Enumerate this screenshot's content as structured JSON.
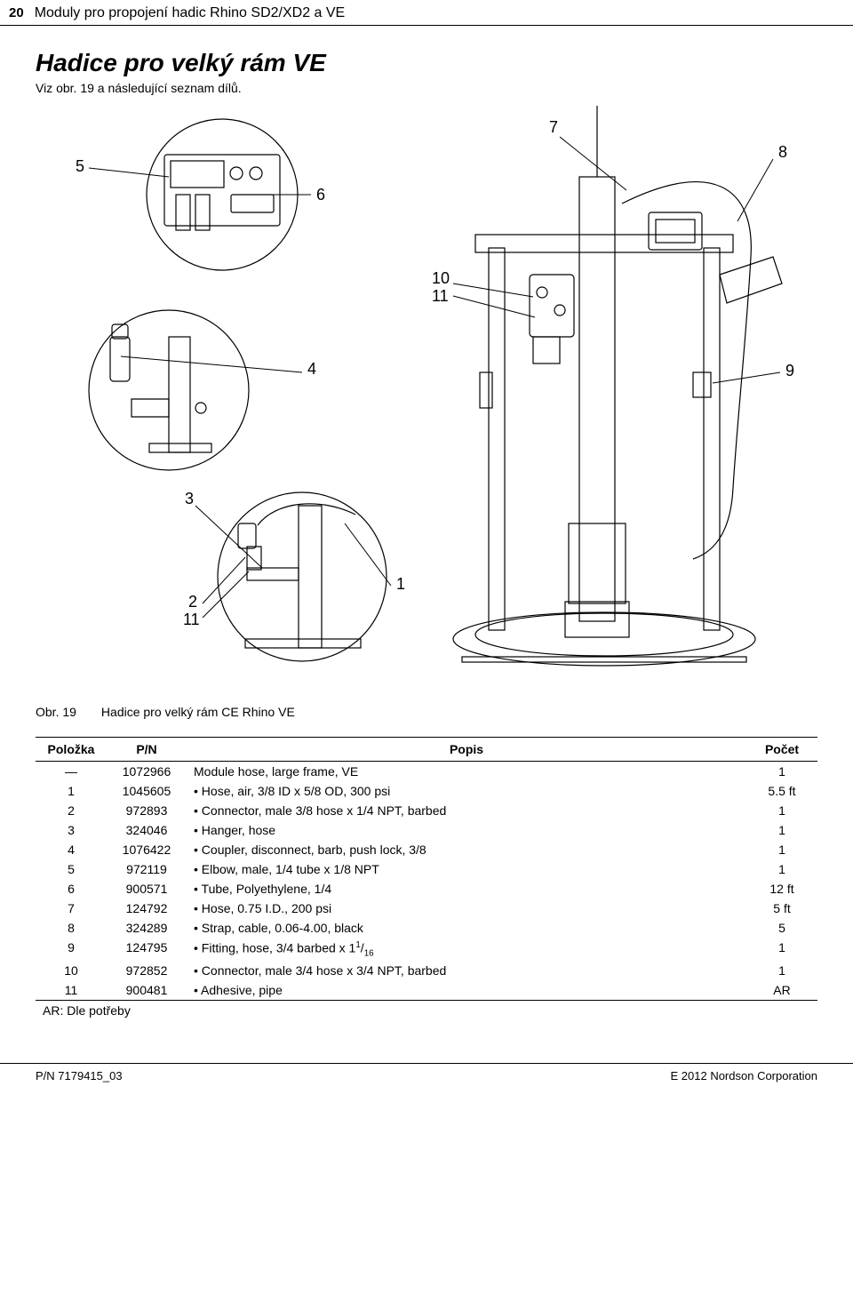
{
  "header": {
    "page_number": "20",
    "doc_title": "Moduly pro propojení hadic Rhino SD2/XD2 a VE"
  },
  "titles": {
    "main": "Hadice pro velký rám VE",
    "sub": "Viz obr. 19 a následující seznam dílů."
  },
  "figure": {
    "callouts": {
      "c5": "5",
      "c6": "6",
      "c7": "7",
      "c8": "8",
      "c10": "10",
      "c11a": "11",
      "c4": "4",
      "c9": "9",
      "c3": "3",
      "c2": "2",
      "c11b": "11",
      "c1": "1"
    },
    "caption_label": "Obr. 19",
    "caption_text": "Hadice pro velký rám CE Rhino VE"
  },
  "table": {
    "headers": {
      "item": "Položka",
      "pn": "P/N",
      "desc": "Popis",
      "qty": "Počet"
    },
    "rows": [
      {
        "item": "—",
        "pn": "1072966",
        "desc": "Module hose, large frame, VE",
        "qty": "1"
      },
      {
        "item": "1",
        "pn": "1045605",
        "desc": "•  Hose, air, 3/8 ID x 5/8 OD, 300 psi",
        "qty": "5.5 ft"
      },
      {
        "item": "2",
        "pn": "972893",
        "desc": "•  Connector, male 3/8 hose x 1/4 NPT, barbed",
        "qty": "1"
      },
      {
        "item": "3",
        "pn": "324046",
        "desc": "•  Hanger, hose",
        "qty": "1"
      },
      {
        "item": "4",
        "pn": "1076422",
        "desc": "•  Coupler, disconnect, barb, push lock, 3/8",
        "qty": "1"
      },
      {
        "item": "5",
        "pn": "972119",
        "desc": "•  Elbow, male, 1/4 tube x 1/8 NPT",
        "qty": "1"
      },
      {
        "item": "6",
        "pn": "900571",
        "desc": "•  Tube, Polyethylene, 1/4",
        "qty": "12 ft"
      },
      {
        "item": "7",
        "pn": "124792",
        "desc": "•  Hose, 0.75 I.D., 200 psi",
        "qty": "5 ft"
      },
      {
        "item": "8",
        "pn": "324289",
        "desc": "•  Strap, cable, 0.06-4.00, black",
        "qty": "5"
      },
      {
        "item": "9",
        "pn": "124795",
        "desc_html": "•  Fitting, hose, 3/4 barbed x 1<span class='sup'>1</span>/<span class='sub'>16</span>",
        "qty": "1"
      },
      {
        "item": "10",
        "pn": "972852",
        "desc": "•  Connector, male 3/4 hose x 3/4 NPT, barbed",
        "qty": "1"
      },
      {
        "item": "11",
        "pn": "900481",
        "desc": "•  Adhesive, pipe",
        "qty": "AR"
      }
    ],
    "legend": "AR:  Dle potřeby"
  },
  "footer": {
    "left": "P/N 7179415_03",
    "right": "E 2012 Nordson Corporation"
  }
}
